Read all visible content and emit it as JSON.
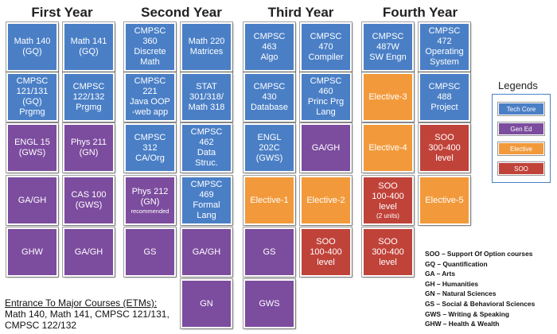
{
  "years": [
    "First Year",
    "Second Year",
    "Third Year",
    "Fourth Year"
  ],
  "courses": {
    "y1": [
      {
        "name": "Math 140\n(GQ)",
        "type": "tech"
      },
      {
        "name": "Math 141\n(GQ)",
        "type": "tech"
      },
      {
        "name": "CMPSC\n121/131\n(GQ)\nPrgmg",
        "type": "tech"
      },
      {
        "name": "CMPSC\n122/132\nPrgmg",
        "type": "tech"
      },
      {
        "name": "ENGL 15\n(GWS)",
        "type": "gened"
      },
      {
        "name": "Phys 211\n(GN)",
        "type": "gened"
      },
      {
        "name": "GA/GH",
        "type": "gened"
      },
      {
        "name": "CAS 100\n(GWS)",
        "type": "gened"
      },
      {
        "name": "GHW",
        "type": "gened"
      },
      {
        "name": "GA/GH",
        "type": "gened"
      }
    ],
    "y2": [
      {
        "name": "CMPSC\n360\nDiscrete\nMath",
        "type": "tech"
      },
      {
        "name": "Math 220\nMatrices",
        "type": "tech"
      },
      {
        "name": "CMPSC\n221\nJava OOP\n-web app",
        "type": "tech"
      },
      {
        "name": "STAT\n301/318/\nMath 318",
        "type": "tech"
      },
      {
        "name": "CMPSC\n312\nCA/Org",
        "type": "tech"
      },
      {
        "name": "CMPSC\n462\nData\nStruc.",
        "type": "tech"
      },
      {
        "name": "Phys 212\n(GN)",
        "note": "recommended",
        "type": "gened"
      },
      {
        "name": "CMPSC\n469\nFormal\nLang",
        "type": "tech"
      },
      {
        "name": "GS",
        "type": "gened"
      },
      {
        "name": "GA/GH",
        "type": "gened"
      },
      {
        "name": "GN",
        "type": "gened"
      }
    ],
    "y3": [
      {
        "name": "CMPSC\n463\nAlgo",
        "type": "tech"
      },
      {
        "name": "CMPSC\n470\nCompiler",
        "type": "tech"
      },
      {
        "name": "CMPSC\n430\nDatabase",
        "type": "tech"
      },
      {
        "name": "CMPSC\n460\nPrinc Prg\nLang",
        "type": "tech"
      },
      {
        "name": "ENGL\n202C\n(GWS)",
        "type": "tech"
      },
      {
        "name": "GA/GH",
        "type": "gened"
      },
      {
        "name": "Elective-1",
        "type": "elective"
      },
      {
        "name": "Elective-2",
        "type": "elective"
      },
      {
        "name": "GS",
        "type": "gened"
      },
      {
        "name": "SOO\n100-400\nlevel",
        "type": "soo"
      },
      {
        "name": "GWS",
        "type": "gened"
      }
    ],
    "y4": [
      {
        "name": "CMPSC\n487W\nSW Engn",
        "type": "tech"
      },
      {
        "name": "CMPSC\n472\nOperating\nSystem",
        "type": "tech"
      },
      {
        "name": "Elective-3",
        "type": "elective"
      },
      {
        "name": "CMPSC\n488\nProject",
        "type": "tech"
      },
      {
        "name": "Elective-4",
        "type": "elective"
      },
      {
        "name": "SOO\n300-400\nlevel",
        "type": "soo"
      },
      {
        "name": "SOO\n100-400\nlevel",
        "note": "(2 units)",
        "type": "soo"
      },
      {
        "name": "Elective-5",
        "type": "elective"
      },
      {
        "name": "SOO\n300-400\nlevel",
        "type": "soo"
      }
    ]
  },
  "legend": {
    "title": "Legends",
    "items": [
      {
        "label": "Tech Core",
        "color": "#4a7fc6"
      },
      {
        "label": "Gen Ed",
        "color": "#7c4c9e"
      },
      {
        "label": "Elective",
        "color": "#f29a3b"
      },
      {
        "label": "SOO",
        "color": "#c0433a"
      }
    ]
  },
  "abbreviations": [
    "SOO – Support Of Option courses",
    "GQ – Quantification",
    "GA – Arts",
    "GH – Humanities",
    "GN – Natural Sciences",
    "GS – Social & Behavioral Sciences",
    "GWS – Writing & Speaking",
    "GHW – Health & Wealth"
  ],
  "etm": {
    "title": "Entrance To Major Courses (ETMs):",
    "line1": "Math 140, Math 141, CMPSC 121/131,",
    "line2": "CMPSC 122/132"
  }
}
